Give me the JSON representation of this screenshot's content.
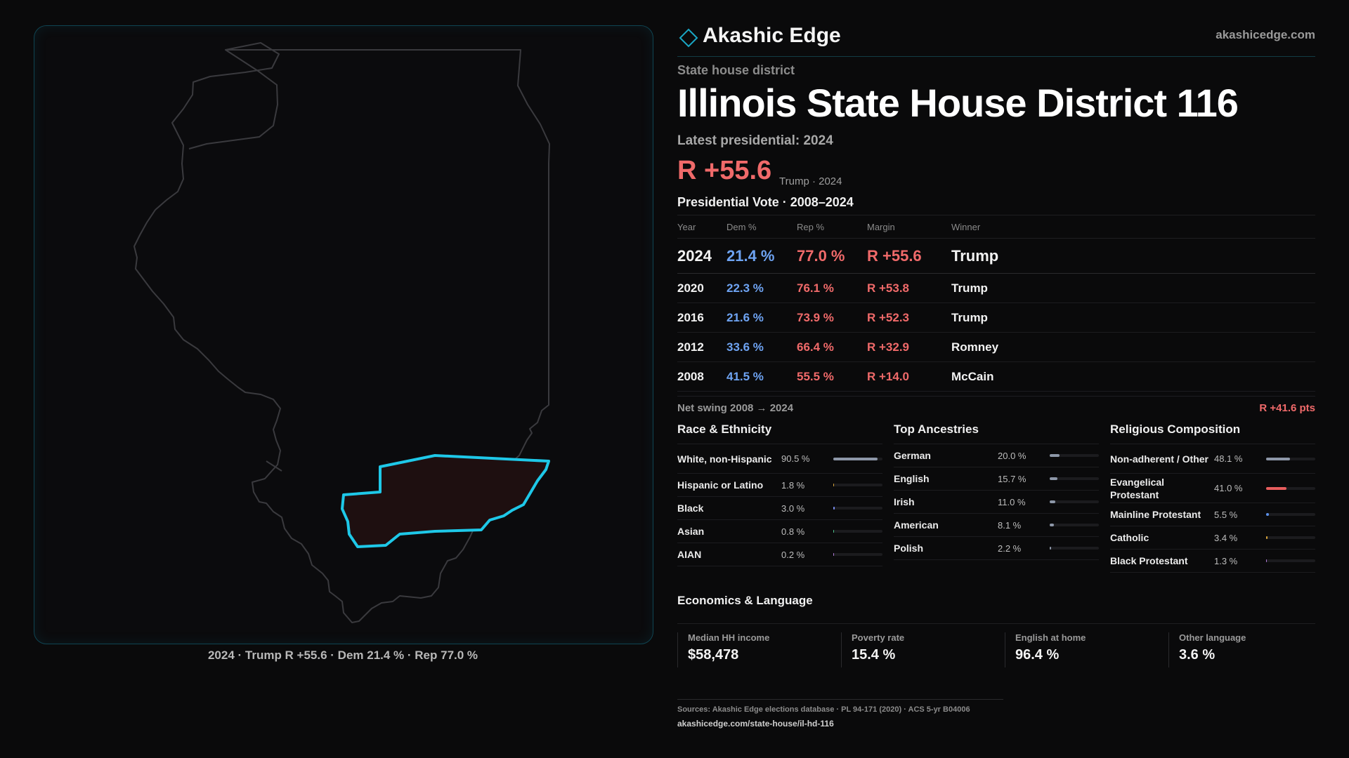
{
  "brand": {
    "name": "Akashic Edge",
    "url": "akashicedge.com",
    "logo_icon": "diamond-outline-icon",
    "accent": "#1aa6c4"
  },
  "header": {
    "kicker": "State house district",
    "title": "Illinois State House District 116",
    "latest_label": "Latest presidential: 2024",
    "margin": "R +55.6",
    "margin_note": "Trump · 2024"
  },
  "map": {
    "caption": "2024 · Trump R +55.6 · Dem 21.4 % · Rep 77.0 %",
    "state_outline_color": "#3a3a3e",
    "district_outline_color": "#1ec8e8",
    "district_fill_color": "#1e0f10"
  },
  "votes": {
    "heading": "Presidential Vote · 2008–2024",
    "headers": [
      "Year",
      "Dem %",
      "Rep %",
      "Margin",
      "Winner"
    ],
    "rows": [
      {
        "year": "2024",
        "dem": "21.4 %",
        "rep": "77.0 %",
        "margin": "R +55.6",
        "winner": "Trump"
      },
      {
        "year": "2020",
        "dem": "22.3 %",
        "rep": "76.1 %",
        "margin": "R +53.8",
        "winner": "Trump"
      },
      {
        "year": "2016",
        "dem": "21.6 %",
        "rep": "73.9 %",
        "margin": "R +52.3",
        "winner": "Trump"
      },
      {
        "year": "2012",
        "dem": "33.6 %",
        "rep": "66.4 %",
        "margin": "R +32.9",
        "winner": "Romney"
      },
      {
        "year": "2008",
        "dem": "41.5 %",
        "rep": "55.5 %",
        "margin": "R +14.0",
        "winner": "McCain"
      }
    ],
    "swing_label": "Net swing 2008 → 2024",
    "swing_value": "R +41.6 pts"
  },
  "race": {
    "title": "Race & Ethnicity",
    "items": [
      {
        "label": "White, non-Hispanic",
        "value": "90.5 %",
        "pct": 90.5,
        "color": "#8d97a8"
      },
      {
        "label": "Hispanic or Latino",
        "value": "1.8 %",
        "pct": 1.8,
        "color": "#d8a43a"
      },
      {
        "label": "Black",
        "value": "3.0 %",
        "pct": 3.0,
        "color": "#7a8cf0"
      },
      {
        "label": "Asian",
        "value": "0.8 %",
        "pct": 0.8,
        "color": "#4cc28a"
      },
      {
        "label": "AIAN",
        "value": "0.2 %",
        "pct": 0.2,
        "color": "#b07ad8"
      }
    ]
  },
  "ancestry": {
    "title": "Top Ancestries",
    "items": [
      {
        "label": "German",
        "value": "20.0 %",
        "pct": 20.0,
        "color": "#8d97a8"
      },
      {
        "label": "English",
        "value": "15.7 %",
        "pct": 15.7,
        "color": "#8d97a8"
      },
      {
        "label": "Irish",
        "value": "11.0 %",
        "pct": 11.0,
        "color": "#8d97a8"
      },
      {
        "label": "American",
        "value": "8.1 %",
        "pct": 8.1,
        "color": "#8d97a8"
      },
      {
        "label": "Polish",
        "value": "2.2 %",
        "pct": 2.2,
        "color": "#8d97a8"
      }
    ]
  },
  "religion": {
    "title": "Religious Composition",
    "items": [
      {
        "label": "Non-adherent / Other",
        "value": "48.1 %",
        "pct": 48.1,
        "color": "#8d97a8"
      },
      {
        "label": "Evangelical Protestant",
        "value": "41.0 %",
        "pct": 41.0,
        "color": "#e85d5d"
      },
      {
        "label": "Mainline Protestant",
        "value": "5.5 %",
        "pct": 5.5,
        "color": "#5a8fe8"
      },
      {
        "label": "Catholic",
        "value": "3.4 %",
        "pct": 3.4,
        "color": "#d8a43a"
      },
      {
        "label": "Black Protestant",
        "value": "1.3 %",
        "pct": 1.3,
        "color": "#b07ad8"
      }
    ]
  },
  "economics": {
    "title": "Economics & Language",
    "items": [
      {
        "label": "Median HH income",
        "value": "$58,478"
      },
      {
        "label": "Poverty rate",
        "value": "15.4 %"
      },
      {
        "label": "English at home",
        "value": "96.4 %"
      },
      {
        "label": "Other language",
        "value": "3.6 %"
      }
    ]
  },
  "sources": {
    "line1": "Sources: Akashic Edge elections database · PL 94-171 (2020) · ACS 5-yr B04006",
    "line2": "akashicedge.com/state-house/il-hd-116"
  }
}
